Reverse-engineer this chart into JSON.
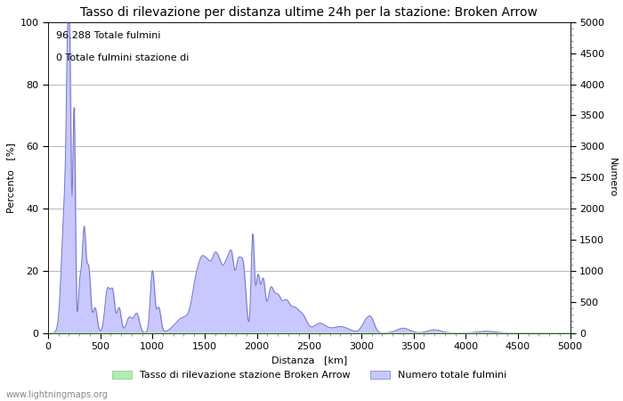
{
  "title": "Tasso di rilevazione per distanza ultime 24h per la stazione: Broken Arrow",
  "xlabel": "Distanza   [km]",
  "ylabel_left": "Percento   [%]",
  "ylabel_right": "Numero",
  "annotation_line1": "96.288 Totale fulmini",
  "annotation_line2": "0 Totale fulmini stazione di",
  "xlim": [
    0,
    5000
  ],
  "ylim_left": [
    0,
    100
  ],
  "ylim_right": [
    0,
    5000
  ],
  "xticks": [
    0,
    500,
    1000,
    1500,
    2000,
    2500,
    3000,
    3500,
    4000,
    4500,
    5000
  ],
  "yticks_left": [
    0,
    20,
    40,
    60,
    80,
    100
  ],
  "yticks_right": [
    0,
    500,
    1000,
    1500,
    2000,
    2500,
    3000,
    3500,
    4000,
    4500,
    5000
  ],
  "legend_label_green": "Tasso di rilevazione stazione Broken Arrow",
  "legend_label_blue": "Numero totale fulmini",
  "fill_color_blue": "#c8c8ff",
  "fill_color_green": "#b0eeb0",
  "line_color": "#7878c0",
  "watermark": "www.lightningmaps.org",
  "background_color": "#ffffff",
  "grid_color": "#b8b8b8",
  "title_fontsize": 10,
  "axis_fontsize": 8,
  "tick_fontsize": 8
}
